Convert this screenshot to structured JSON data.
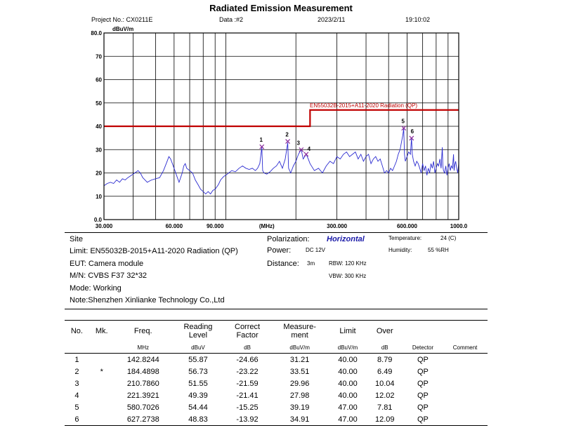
{
  "header": {
    "title": "Radiated Emission Measurement",
    "project": "Project No.: CX0211E",
    "data": "Data :#2",
    "date": "2023/2/11",
    "time": "19:10:02"
  },
  "chart_data": {
    "type": "line",
    "title": "Radiated Emission Measurement",
    "ylabel": "dBuV/m",
    "xlabel": "(MHz)",
    "xscale": "log",
    "xlim": [
      30,
      1000
    ],
    "ylim": [
      0,
      80
    ],
    "y_ticks": [
      "80.0",
      "70",
      "60",
      "50",
      "40",
      "30",
      "20",
      "10",
      "0.0"
    ],
    "x_tick_labels": [
      {
        "value": 30,
        "label": "30.000"
      },
      {
        "value": 60,
        "label": "60.000"
      },
      {
        "value": 90,
        "label": "90.000"
      },
      {
        "value": 150,
        "label": "(MHz)"
      },
      {
        "value": 300,
        "label": "300.000"
      },
      {
        "value": 600,
        "label": "600.000"
      },
      {
        "value": 1000,
        "label": "1000.0"
      }
    ],
    "limit_label": "EN55032B-2015+A11-2020 Radiation (QP)",
    "limit": [
      {
        "x": 30,
        "y": 40
      },
      {
        "x": 230,
        "y": 40
      },
      {
        "x": 230,
        "y": 47
      },
      {
        "x": 1000,
        "y": 47
      }
    ],
    "trace": [
      [
        30,
        14.5
      ],
      [
        31,
        15.5
      ],
      [
        32,
        16
      ],
      [
        33,
        15.5
      ],
      [
        34,
        17
      ],
      [
        35,
        16
      ],
      [
        36,
        17.5
      ],
      [
        37,
        17
      ],
      [
        38,
        18
      ],
      [
        40,
        19.5
      ],
      [
        42,
        21
      ],
      [
        43,
        20
      ],
      [
        44,
        18
      ],
      [
        46,
        16
      ],
      [
        48,
        17
      ],
      [
        50,
        17.5
      ],
      [
        52,
        18
      ],
      [
        54,
        21
      ],
      [
        56,
        25
      ],
      [
        57,
        27
      ],
      [
        58,
        26
      ],
      [
        59,
        24
      ],
      [
        60,
        22
      ],
      [
        62,
        18
      ],
      [
        63,
        16
      ],
      [
        64,
        18
      ],
      [
        65,
        20
      ],
      [
        66,
        23
      ],
      [
        67,
        24
      ],
      [
        68,
        22
      ],
      [
        70,
        21
      ],
      [
        72,
        20
      ],
      [
        74,
        17
      ],
      [
        76,
        15
      ],
      [
        78,
        13
      ],
      [
        80,
        12
      ],
      [
        82,
        11
      ],
      [
        84,
        12
      ],
      [
        86,
        11
      ],
      [
        88,
        12.5
      ],
      [
        90,
        13
      ],
      [
        93,
        15
      ],
      [
        95,
        17
      ],
      [
        98,
        18.5
      ],
      [
        100,
        19
      ],
      [
        103,
        20
      ],
      [
        106,
        21
      ],
      [
        110,
        20.5
      ],
      [
        114,
        22
      ],
      [
        118,
        23
      ],
      [
        122,
        22
      ],
      [
        126,
        21.5
      ],
      [
        130,
        22
      ],
      [
        134,
        21
      ],
      [
        137,
        22
      ],
      [
        140,
        24
      ],
      [
        142.8,
        31
      ],
      [
        144,
        21
      ],
      [
        146,
        20
      ],
      [
        150,
        19.5
      ],
      [
        155,
        20.5
      ],
      [
        160,
        22
      ],
      [
        165,
        23
      ],
      [
        170,
        25
      ],
      [
        175,
        22
      ],
      [
        180,
        26
      ],
      [
        184.5,
        33
      ],
      [
        186,
        22
      ],
      [
        190,
        20
      ],
      [
        195,
        23
      ],
      [
        200,
        25
      ],
      [
        205,
        28
      ],
      [
        210.8,
        30
      ],
      [
        215,
        26
      ],
      [
        221.4,
        28
      ],
      [
        226,
        26
      ],
      [
        230,
        24
      ],
      [
        240,
        21
      ],
      [
        250,
        22
      ],
      [
        260,
        20
      ],
      [
        270,
        23
      ],
      [
        280,
        25
      ],
      [
        290,
        24
      ],
      [
        300,
        27
      ],
      [
        310,
        26
      ],
      [
        320,
        28
      ],
      [
        330,
        29
      ],
      [
        340,
        27
      ],
      [
        350,
        28
      ],
      [
        360,
        29
      ],
      [
        370,
        26
      ],
      [
        380,
        28
      ],
      [
        390,
        25
      ],
      [
        400,
        27
      ],
      [
        410,
        28
      ],
      [
        420,
        24
      ],
      [
        430,
        26
      ],
      [
        440,
        27
      ],
      [
        450,
        25
      ],
      [
        460,
        26
      ],
      [
        470,
        23
      ],
      [
        480,
        20
      ],
      [
        490,
        21
      ],
      [
        500,
        20
      ],
      [
        510,
        22
      ],
      [
        520,
        21
      ],
      [
        530,
        23
      ],
      [
        540,
        25
      ],
      [
        550,
        28
      ],
      [
        560,
        30
      ],
      [
        570,
        34
      ],
      [
        575,
        36
      ],
      [
        580.7,
        39
      ],
      [
        585,
        28
      ],
      [
        590,
        25
      ],
      [
        600,
        27
      ],
      [
        610,
        29
      ],
      [
        620,
        28
      ],
      [
        627.3,
        35
      ],
      [
        632,
        28
      ],
      [
        640,
        25
      ],
      [
        650,
        23
      ],
      [
        660,
        25
      ],
      [
        670,
        24
      ],
      [
        680,
        22
      ],
      [
        690,
        20
      ],
      [
        700,
        24
      ],
      [
        710,
        21
      ],
      [
        720,
        23
      ],
      [
        730,
        19
      ],
      [
        740,
        22
      ],
      [
        750,
        20
      ],
      [
        760,
        24
      ],
      [
        770,
        22
      ],
      [
        780,
        25
      ],
      [
        790,
        20
      ],
      [
        800,
        22
      ],
      [
        810,
        24
      ],
      [
        820,
        23
      ],
      [
        830,
        26
      ],
      [
        840,
        22
      ],
      [
        850,
        31
      ],
      [
        855,
        23
      ],
      [
        860,
        21
      ],
      [
        870,
        20
      ],
      [
        880,
        23
      ],
      [
        890,
        19
      ],
      [
        900,
        22
      ],
      [
        910,
        24
      ],
      [
        920,
        21
      ],
      [
        930,
        23
      ],
      [
        940,
        22
      ],
      [
        950,
        28
      ],
      [
        955,
        21
      ],
      [
        960,
        23
      ],
      [
        970,
        25
      ],
      [
        980,
        22
      ],
      [
        990,
        20
      ],
      [
        1000,
        24
      ]
    ],
    "markers": [
      {
        "label": "1",
        "x": 142.8244,
        "y": 31.21
      },
      {
        "label": "2",
        "x": 184.4898,
        "y": 33.51
      },
      {
        "label": "3",
        "x": 210.786,
        "y": 29.96
      },
      {
        "label": "4",
        "x": 221.3921,
        "y": 27.98
      },
      {
        "label": "5",
        "x": 580.7026,
        "y": 39.19
      },
      {
        "label": "6",
        "x": 627.2738,
        "y": 34.91
      }
    ]
  },
  "info": {
    "site": "Site",
    "limit": "Limit: EN55032B-2015+A11-2020  Radiation (QP)",
    "eut": "EUT:  Camera module",
    "mn": "M/N:  CVBS F37 32*32",
    "mode": "Mode:  Working",
    "note": "Note:Shenzhen Xinlianke Technology Co.,Ltd",
    "polarization_label": "Polarization:",
    "polarization_value": "Horizontal",
    "power_label": "Power:",
    "power_value": "DC 12V",
    "distance_label": "Distance:",
    "distance_value": "3m",
    "temperature_label": "Temperature:",
    "temperature_value": "24 (C)",
    "humidity_label": "Humidity:",
    "humidity_value": "55 %RH",
    "rbw": "RBW: 120 KHz",
    "vbw": "VBW: 300 KHz"
  },
  "table": {
    "headers": [
      "No.",
      "Mk.",
      "Freq.",
      "Reading\nLevel",
      "Correct\nFactor",
      "Measure-\nment",
      "Limit",
      "Over",
      "",
      ""
    ],
    "units": [
      "",
      "",
      "MHz",
      "dBuV",
      "dB",
      "dBuV/m",
      "dBuV/m",
      "dB",
      "Detector",
      "Comment"
    ],
    "rows": [
      [
        "1",
        "",
        "142.8244",
        "55.87",
        "-24.66",
        "31.21",
        "40.00",
        "8.79",
        "QP",
        ""
      ],
      [
        "2",
        "*",
        "184.4898",
        "56.73",
        "-23.22",
        "33.51",
        "40.00",
        "6.49",
        "QP",
        ""
      ],
      [
        "3",
        "",
        "210.7860",
        "51.55",
        "-21.59",
        "29.96",
        "40.00",
        "10.04",
        "QP",
        ""
      ],
      [
        "4",
        "",
        "221.3921",
        "49.39",
        "-21.41",
        "27.98",
        "40.00",
        "12.02",
        "QP",
        ""
      ],
      [
        "5",
        "",
        "580.7026",
        "54.44",
        "-15.25",
        "39.19",
        "47.00",
        "7.81",
        "QP",
        ""
      ],
      [
        "6",
        "",
        "627.2738",
        "48.83",
        "-13.92",
        "34.91",
        "47.00",
        "12.09",
        "QP",
        ""
      ]
    ]
  }
}
